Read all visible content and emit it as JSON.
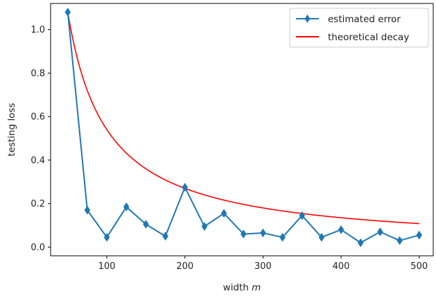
{
  "chart_data": {
    "type": "line",
    "xlabel_prefix": "width ",
    "xlabel_var": "m",
    "ylabel": "testing loss",
    "xlim": [
      28,
      518
    ],
    "ylim": [
      -0.04,
      1.12
    ],
    "xticks": [
      100,
      200,
      300,
      400,
      500
    ],
    "yticks": [
      0.0,
      0.2,
      0.4,
      0.6,
      0.8,
      1.0
    ],
    "ytick_labels": [
      "0.0",
      "0.2",
      "0.4",
      "0.6",
      "0.8",
      "1.0"
    ],
    "grid": false,
    "legend_position": "top-right",
    "series": [
      {
        "name": "estimated error",
        "color": "#1f77b4",
        "marker": "diamond",
        "x": [
          50,
          75,
          100,
          125,
          150,
          175,
          200,
          225,
          250,
          275,
          300,
          325,
          350,
          375,
          400,
          425,
          450,
          475,
          500
        ],
        "y": [
          1.08,
          0.17,
          0.045,
          0.185,
          0.105,
          0.05,
          0.275,
          0.095,
          0.155,
          0.06,
          0.065,
          0.045,
          0.145,
          0.045,
          0.08,
          0.02,
          0.07,
          0.03,
          0.055
        ]
      },
      {
        "name": "theoretical decay",
        "color": "#ff0000",
        "marker": "none",
        "formula": "y = 54 / x",
        "x_range": [
          50,
          500
        ]
      }
    ]
  }
}
